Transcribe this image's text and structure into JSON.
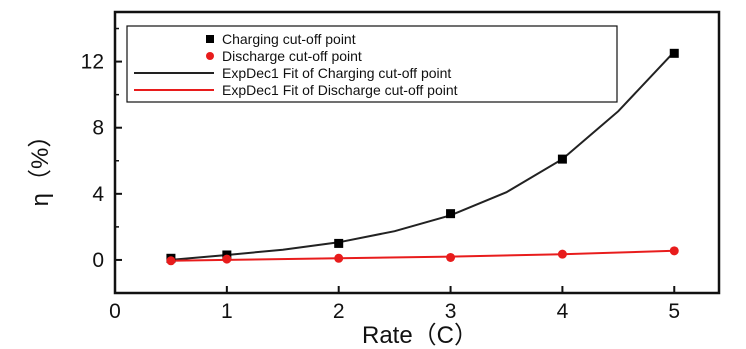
{
  "chart_data": {
    "type": "scatter",
    "xlabel": "Rate（C）",
    "ylabel": "η（%）",
    "xlim": [
      0,
      5.4
    ],
    "ylim": [
      -2,
      15
    ],
    "xticks": [
      0,
      1,
      2,
      3,
      4,
      5
    ],
    "yticks": [
      0,
      4,
      8,
      12
    ],
    "legend_position": "top-left",
    "series": [
      {
        "name": "Charging cut-off point",
        "kind": "points",
        "marker": "square",
        "color": "#000000",
        "x": [
          0.5,
          1,
          2,
          3,
          4,
          5
        ],
        "y": [
          0.1,
          0.3,
          1.0,
          2.8,
          6.1,
          12.5
        ]
      },
      {
        "name": "Discharge cut-off point",
        "kind": "points",
        "marker": "circle",
        "color": "#e81c1c",
        "x": [
          0.5,
          1,
          2,
          3,
          4,
          5
        ],
        "y": [
          -0.05,
          0.05,
          0.1,
          0.15,
          0.35,
          0.55
        ]
      },
      {
        "name": "ExpDec1 Fit of Charging cut-off point",
        "kind": "line",
        "color": "#222222",
        "x": [
          0.5,
          1,
          1.5,
          2,
          2.5,
          3,
          3.5,
          4,
          4.5,
          5
        ],
        "y": [
          0.0,
          0.3,
          0.62,
          1.07,
          1.74,
          2.7,
          4.1,
          6.1,
          9.0,
          12.6
        ]
      },
      {
        "name": "ExpDec1 Fit of Discharge cut-off point",
        "kind": "line",
        "color": "#e81c1c",
        "x": [
          0.5,
          1,
          2,
          3,
          4,
          5
        ],
        "y": [
          -0.05,
          0.0,
          0.1,
          0.2,
          0.35,
          0.55
        ]
      }
    ]
  }
}
